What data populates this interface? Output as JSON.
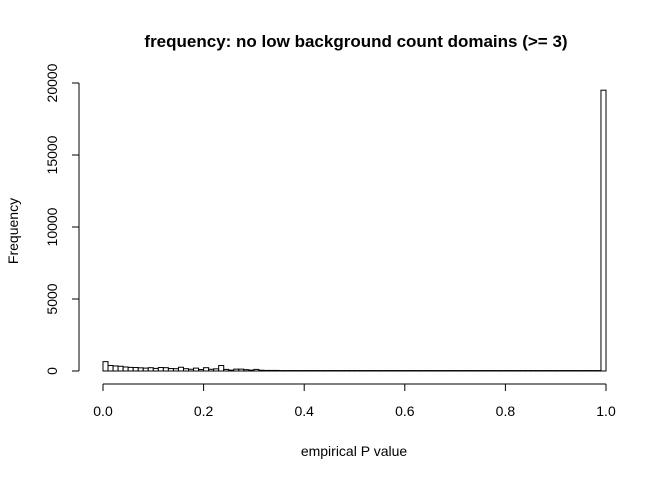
{
  "chart_data": {
    "type": "bar",
    "title": "frequency: no low background count domains (>= 3)",
    "xlabel": "empirical P value",
    "ylabel": "Frequency",
    "xlim": [
      0,
      1
    ],
    "ylim": [
      0,
      20000
    ],
    "x_ticks": [
      0.0,
      0.2,
      0.4,
      0.6,
      0.8,
      1.0
    ],
    "x_tick_labels": [
      "0.0",
      "0.2",
      "0.4",
      "0.6",
      "0.8",
      "1.0"
    ],
    "y_ticks": [
      0,
      5000,
      10000,
      15000,
      20000
    ],
    "y_tick_labels": [
      "0",
      "5000",
      "10000",
      "15000",
      "20000"
    ],
    "bin_width": 0.01,
    "bin_starts": [
      0.0,
      0.01,
      0.02,
      0.03,
      0.04,
      0.05,
      0.06,
      0.07,
      0.08,
      0.09,
      0.1,
      0.11,
      0.12,
      0.13,
      0.14,
      0.15,
      0.16,
      0.17,
      0.18,
      0.19,
      0.2,
      0.21,
      0.22,
      0.23,
      0.24,
      0.25,
      0.26,
      0.27,
      0.28,
      0.29,
      0.3,
      0.31,
      0.32,
      0.33,
      0.34,
      0.35,
      0.36,
      0.37,
      0.38,
      0.39,
      0.4,
      0.41,
      0.42,
      0.43,
      0.44,
      0.45,
      0.46,
      0.47,
      0.48,
      0.49,
      0.5,
      0.51,
      0.52,
      0.53,
      0.54,
      0.55,
      0.56,
      0.57,
      0.58,
      0.59,
      0.6,
      0.61,
      0.62,
      0.63,
      0.64,
      0.65,
      0.66,
      0.67,
      0.68,
      0.69,
      0.7,
      0.71,
      0.72,
      0.73,
      0.74,
      0.75,
      0.76,
      0.77,
      0.78,
      0.79,
      0.8,
      0.81,
      0.82,
      0.83,
      0.84,
      0.85,
      0.86,
      0.87,
      0.88,
      0.89,
      0.9,
      0.91,
      0.92,
      0.93,
      0.94,
      0.95,
      0.96,
      0.97,
      0.98,
      0.99
    ],
    "values": [
      650,
      380,
      350,
      330,
      280,
      250,
      240,
      220,
      200,
      230,
      180,
      240,
      230,
      170,
      160,
      260,
      160,
      120,
      200,
      100,
      230,
      120,
      150,
      380,
      110,
      60,
      130,
      130,
      90,
      60,
      110,
      50,
      40,
      40,
      40,
      30,
      30,
      30,
      30,
      30,
      30,
      30,
      30,
      30,
      30,
      30,
      30,
      30,
      30,
      30,
      30,
      30,
      30,
      30,
      30,
      30,
      30,
      30,
      30,
      30,
      30,
      30,
      30,
      30,
      30,
      30,
      30,
      30,
      30,
      30,
      30,
      30,
      30,
      30,
      30,
      30,
      30,
      30,
      30,
      30,
      30,
      30,
      30,
      30,
      30,
      30,
      30,
      30,
      30,
      30,
      30,
      30,
      30,
      30,
      30,
      30,
      30,
      30,
      30,
      19500
    ]
  }
}
